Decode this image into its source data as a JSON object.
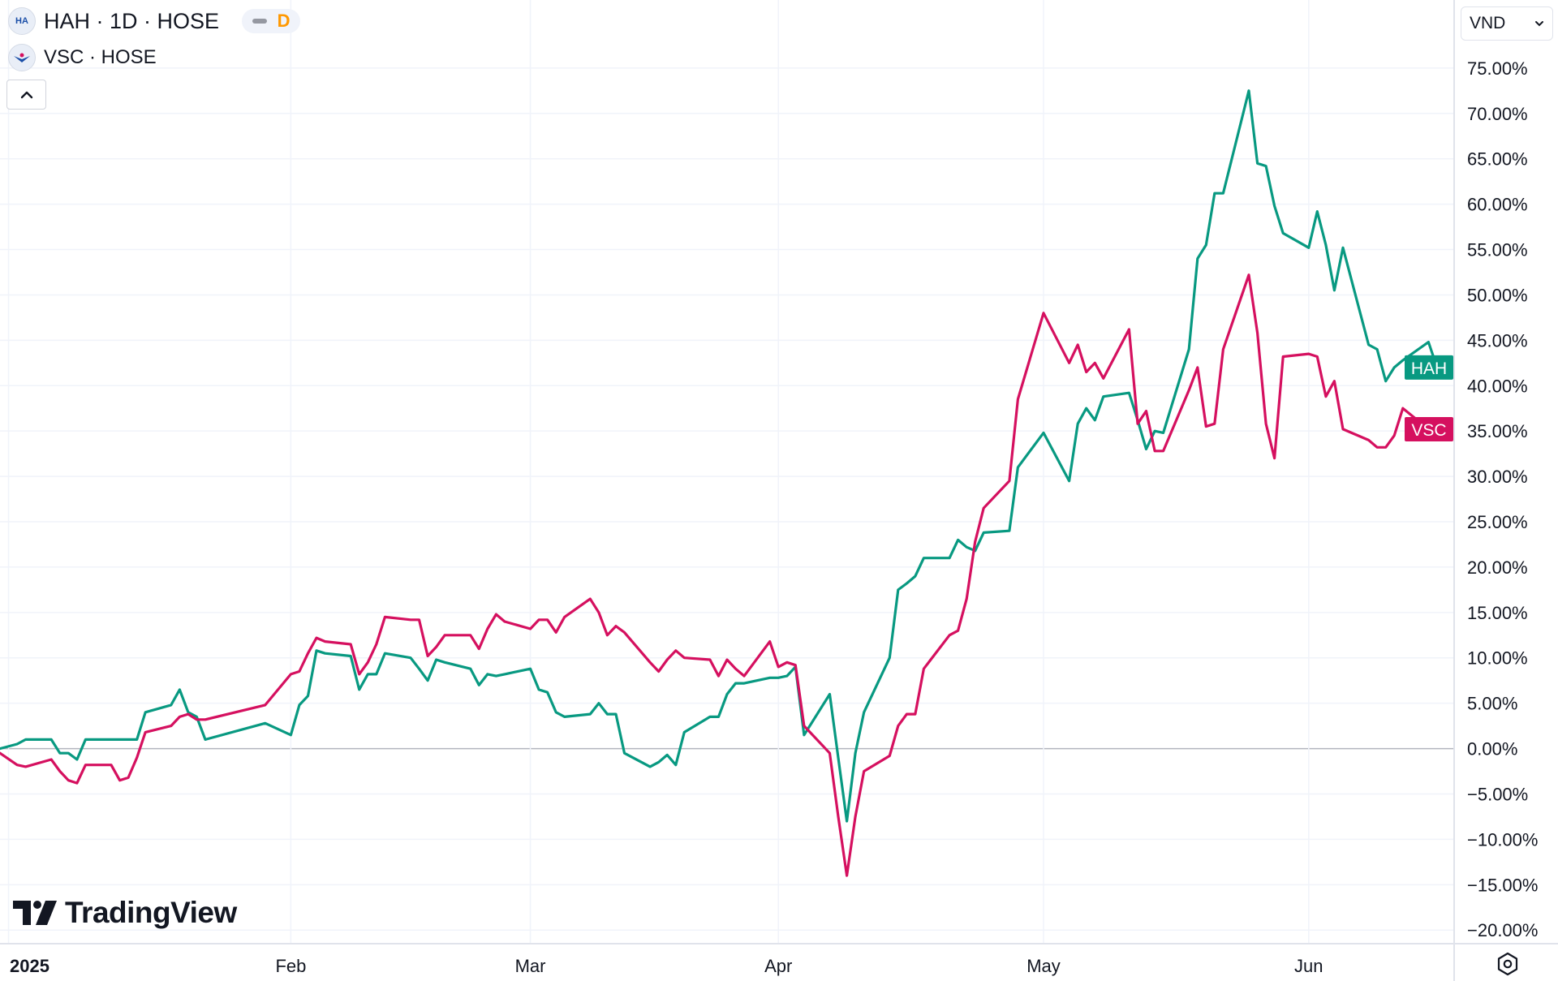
{
  "legend": {
    "primary": {
      "icon": "hah-logo-icon",
      "logo_text": "HA",
      "title": "HAH · 1D · HOSE",
      "interval_badge": "D"
    },
    "secondary": {
      "icon": "vsc-logo-icon",
      "title": "VSC · HOSE"
    }
  },
  "currency": {
    "label": "VND",
    "icon": "chevron-down-icon"
  },
  "branding": {
    "name": "TradingView",
    "icon": "tradingview-logo-icon"
  },
  "settings": {
    "icon": "gear-hexagon-icon"
  },
  "colors": {
    "HAH": "#089981",
    "VSC": "#d5105f",
    "grid": "#f0f3fa",
    "zero": "#b2b5be",
    "axis_text": "#131722"
  },
  "chart_data": {
    "type": "line",
    "x_unit": "trading days, 2025",
    "xlim": [
      "2024-12-31",
      "2025-06-19"
    ],
    "ylim": [
      -21.5,
      82.5
    ],
    "y_format": "percent",
    "y_ticks": [
      75,
      70,
      65,
      60,
      55,
      50,
      45,
      40,
      35,
      30,
      25,
      20,
      15,
      10,
      5,
      0,
      -5,
      -10,
      -15,
      -20
    ],
    "y_tick_labels": [
      "75.00%",
      "70.00%",
      "65.00%",
      "60.00%",
      "55.00%",
      "50.00%",
      "45.00%",
      "40.00%",
      "35.00%",
      "30.00%",
      "25.00%",
      "20.00%",
      "15.00%",
      "10.00%",
      "5.00%",
      "0.00%",
      "−5.00%",
      "−10.00%",
      "−15.00%",
      "−20.00%"
    ],
    "x_ticks": [
      {
        "label": "2025",
        "date": "2025-01-01",
        "bold": true
      },
      {
        "label": "Feb",
        "date": "2025-02-03"
      },
      {
        "label": "Mar",
        "date": "2025-03-03"
      },
      {
        "label": "Apr",
        "date": "2025-04-01"
      },
      {
        "label": "May",
        "date": "2025-05-02"
      },
      {
        "label": "Jun",
        "date": "2025-06-02"
      }
    ],
    "series": [
      {
        "name": "HAH",
        "color": "#089981",
        "last_label": "HAH",
        "points": [
          [
            "2024-12-31",
            0.0
          ],
          [
            "2025-01-02",
            0.5
          ],
          [
            "2025-01-03",
            1.0
          ],
          [
            "2025-01-06",
            1.0
          ],
          [
            "2025-01-07",
            -0.5
          ],
          [
            "2025-01-08",
            -0.5
          ],
          [
            "2025-01-09",
            -1.2
          ],
          [
            "2025-01-10",
            1.0
          ],
          [
            "2025-01-13",
            1.0
          ],
          [
            "2025-01-14",
            1.0
          ],
          [
            "2025-01-15",
            1.0
          ],
          [
            "2025-01-16",
            1.0
          ],
          [
            "2025-01-17",
            4.0
          ],
          [
            "2025-01-20",
            4.8
          ],
          [
            "2025-01-21",
            6.5
          ],
          [
            "2025-01-22",
            4.0
          ],
          [
            "2025-01-23",
            3.5
          ],
          [
            "2025-01-24",
            1.0
          ],
          [
            "2025-01-31",
            2.8
          ],
          [
            "2025-02-03",
            1.5
          ],
          [
            "2025-02-04",
            4.8
          ],
          [
            "2025-02-05",
            5.8
          ],
          [
            "2025-02-06",
            10.8
          ],
          [
            "2025-02-07",
            10.5
          ],
          [
            "2025-02-10",
            10.2
          ],
          [
            "2025-02-11",
            6.5
          ],
          [
            "2025-02-12",
            8.2
          ],
          [
            "2025-02-13",
            8.2
          ],
          [
            "2025-02-14",
            10.5
          ],
          [
            "2025-02-17",
            10.0
          ],
          [
            "2025-02-18",
            8.8
          ],
          [
            "2025-02-19",
            7.5
          ],
          [
            "2025-02-20",
            9.8
          ],
          [
            "2025-02-21",
            9.5
          ],
          [
            "2025-02-24",
            8.8
          ],
          [
            "2025-02-25",
            7.0
          ],
          [
            "2025-02-26",
            8.2
          ],
          [
            "2025-02-27",
            8.0
          ],
          [
            "2025-02-28",
            8.2
          ],
          [
            "2025-03-03",
            8.8
          ],
          [
            "2025-03-04",
            6.5
          ],
          [
            "2025-03-05",
            6.2
          ],
          [
            "2025-03-06",
            4.0
          ],
          [
            "2025-03-07",
            3.5
          ],
          [
            "2025-03-10",
            3.8
          ],
          [
            "2025-03-11",
            5.0
          ],
          [
            "2025-03-12",
            3.8
          ],
          [
            "2025-03-13",
            3.8
          ],
          [
            "2025-03-14",
            -0.5
          ],
          [
            "2025-03-17",
            -2.0
          ],
          [
            "2025-03-18",
            -1.5
          ],
          [
            "2025-03-19",
            -0.7
          ],
          [
            "2025-03-20",
            -1.8
          ],
          [
            "2025-03-21",
            1.8
          ],
          [
            "2025-03-24",
            3.5
          ],
          [
            "2025-03-25",
            3.5
          ],
          [
            "2025-03-26",
            6.0
          ],
          [
            "2025-03-27",
            7.2
          ],
          [
            "2025-03-28",
            7.2
          ],
          [
            "2025-03-31",
            7.8
          ],
          [
            "2025-04-01",
            7.8
          ],
          [
            "2025-04-02",
            8.0
          ],
          [
            "2025-04-03",
            9.0
          ],
          [
            "2025-04-04",
            1.5
          ],
          [
            "2025-04-07",
            6.0
          ],
          [
            "2025-04-08",
            -1.0
          ],
          [
            "2025-04-09",
            -8.0
          ],
          [
            "2025-04-10",
            -0.5
          ],
          [
            "2025-04-11",
            4.0
          ],
          [
            "2025-04-14",
            10.0
          ],
          [
            "2025-04-15",
            17.5
          ],
          [
            "2025-04-16",
            18.2
          ],
          [
            "2025-04-17",
            19.0
          ],
          [
            "2025-04-18",
            21.0
          ],
          [
            "2025-04-21",
            21.0
          ],
          [
            "2025-04-22",
            23.0
          ],
          [
            "2025-04-23",
            22.2
          ],
          [
            "2025-04-24",
            21.8
          ],
          [
            "2025-04-25",
            23.8
          ],
          [
            "2025-04-28",
            24.0
          ],
          [
            "2025-04-29",
            31.0
          ],
          [
            "2025-05-02",
            34.8
          ],
          [
            "2025-05-05",
            29.5
          ],
          [
            "2025-05-06",
            35.8
          ],
          [
            "2025-05-07",
            37.5
          ],
          [
            "2025-05-08",
            36.2
          ],
          [
            "2025-05-09",
            38.8
          ],
          [
            "2025-05-12",
            39.2
          ],
          [
            "2025-05-13",
            36.2
          ],
          [
            "2025-05-14",
            33.0
          ],
          [
            "2025-05-15",
            35.0
          ],
          [
            "2025-05-16",
            34.8
          ],
          [
            "2025-05-19",
            44.0
          ],
          [
            "2025-05-20",
            54.0
          ],
          [
            "2025-05-21",
            55.5
          ],
          [
            "2025-05-22",
            61.2
          ],
          [
            "2025-05-23",
            61.2
          ],
          [
            "2025-05-26",
            72.5
          ],
          [
            "2025-05-27",
            64.5
          ],
          [
            "2025-05-28",
            64.2
          ],
          [
            "2025-05-29",
            59.8
          ],
          [
            "2025-05-30",
            56.8
          ],
          [
            "2025-06-02",
            55.2
          ],
          [
            "2025-06-03",
            59.2
          ],
          [
            "2025-06-04",
            55.5
          ],
          [
            "2025-06-05",
            50.5
          ],
          [
            "2025-06-06",
            55.2
          ],
          [
            "2025-06-09",
            44.5
          ],
          [
            "2025-06-10",
            44.0
          ],
          [
            "2025-06-11",
            40.5
          ],
          [
            "2025-06-12",
            42.0
          ],
          [
            "2025-06-13",
            42.8
          ],
          [
            "2025-06-16",
            44.8
          ],
          [
            "2025-06-17",
            42.0
          ]
        ]
      },
      {
        "name": "VSC",
        "color": "#d5105f",
        "last_label": "VSC",
        "points": [
          [
            "2024-12-31",
            -0.5
          ],
          [
            "2025-01-02",
            -1.8
          ],
          [
            "2025-01-03",
            -2.0
          ],
          [
            "2025-01-06",
            -1.2
          ],
          [
            "2025-01-07",
            -2.5
          ],
          [
            "2025-01-08",
            -3.5
          ],
          [
            "2025-01-09",
            -3.8
          ],
          [
            "2025-01-10",
            -1.8
          ],
          [
            "2025-01-13",
            -1.8
          ],
          [
            "2025-01-14",
            -3.5
          ],
          [
            "2025-01-15",
            -3.2
          ],
          [
            "2025-01-16",
            -1.0
          ],
          [
            "2025-01-17",
            1.8
          ],
          [
            "2025-01-20",
            2.5
          ],
          [
            "2025-01-21",
            3.5
          ],
          [
            "2025-01-22",
            3.8
          ],
          [
            "2025-01-23",
            3.2
          ],
          [
            "2025-01-24",
            3.2
          ],
          [
            "2025-01-31",
            4.8
          ],
          [
            "2025-02-03",
            8.2
          ],
          [
            "2025-02-04",
            8.5
          ],
          [
            "2025-02-05",
            10.5
          ],
          [
            "2025-02-06",
            12.2
          ],
          [
            "2025-02-07",
            11.8
          ],
          [
            "2025-02-10",
            11.5
          ],
          [
            "2025-02-11",
            8.2
          ],
          [
            "2025-02-12",
            9.5
          ],
          [
            "2025-02-13",
            11.5
          ],
          [
            "2025-02-14",
            14.5
          ],
          [
            "2025-02-17",
            14.2
          ],
          [
            "2025-02-18",
            14.2
          ],
          [
            "2025-02-19",
            10.2
          ],
          [
            "2025-02-20",
            11.2
          ],
          [
            "2025-02-21",
            12.5
          ],
          [
            "2025-02-24",
            12.5
          ],
          [
            "2025-02-25",
            11.0
          ],
          [
            "2025-02-26",
            13.2
          ],
          [
            "2025-02-27",
            14.8
          ],
          [
            "2025-02-28",
            14.0
          ],
          [
            "2025-03-03",
            13.2
          ],
          [
            "2025-03-04",
            14.2
          ],
          [
            "2025-03-05",
            14.2
          ],
          [
            "2025-03-06",
            12.8
          ],
          [
            "2025-03-07",
            14.5
          ],
          [
            "2025-03-10",
            16.5
          ],
          [
            "2025-03-11",
            15.0
          ],
          [
            "2025-03-12",
            12.5
          ],
          [
            "2025-03-13",
            13.5
          ],
          [
            "2025-03-14",
            12.8
          ],
          [
            "2025-03-17",
            9.5
          ],
          [
            "2025-03-18",
            8.5
          ],
          [
            "2025-03-19",
            9.8
          ],
          [
            "2025-03-20",
            10.8
          ],
          [
            "2025-03-21",
            10.0
          ],
          [
            "2025-03-24",
            9.8
          ],
          [
            "2025-03-25",
            8.0
          ],
          [
            "2025-03-26",
            9.8
          ],
          [
            "2025-03-27",
            8.8
          ],
          [
            "2025-03-28",
            8.0
          ],
          [
            "2025-03-31",
            11.8
          ],
          [
            "2025-04-01",
            9.0
          ],
          [
            "2025-04-02",
            9.5
          ],
          [
            "2025-04-03",
            9.2
          ],
          [
            "2025-04-04",
            2.5
          ],
          [
            "2025-04-07",
            -0.5
          ],
          [
            "2025-04-08",
            -7.5
          ],
          [
            "2025-04-09",
            -14.0
          ],
          [
            "2025-04-10",
            -7.5
          ],
          [
            "2025-04-11",
            -2.5
          ],
          [
            "2025-04-14",
            -0.8
          ],
          [
            "2025-04-15",
            2.5
          ],
          [
            "2025-04-16",
            3.8
          ],
          [
            "2025-04-17",
            3.8
          ],
          [
            "2025-04-18",
            8.8
          ],
          [
            "2025-04-21",
            12.5
          ],
          [
            "2025-04-22",
            13.0
          ],
          [
            "2025-04-23",
            16.5
          ],
          [
            "2025-04-24",
            22.8
          ],
          [
            "2025-04-25",
            26.5
          ],
          [
            "2025-04-28",
            29.5
          ],
          [
            "2025-04-29",
            38.5
          ],
          [
            "2025-05-02",
            48.0
          ],
          [
            "2025-05-05",
            42.5
          ],
          [
            "2025-05-06",
            44.5
          ],
          [
            "2025-05-07",
            41.5
          ],
          [
            "2025-05-08",
            42.5
          ],
          [
            "2025-05-09",
            40.8
          ],
          [
            "2025-05-12",
            46.2
          ],
          [
            "2025-05-13",
            35.8
          ],
          [
            "2025-05-14",
            37.2
          ],
          [
            "2025-05-15",
            32.8
          ],
          [
            "2025-05-16",
            32.8
          ],
          [
            "2025-05-19",
            39.5
          ],
          [
            "2025-05-20",
            42.0
          ],
          [
            "2025-05-21",
            35.5
          ],
          [
            "2025-05-22",
            35.8
          ],
          [
            "2025-05-23",
            44.0
          ],
          [
            "2025-05-26",
            52.2
          ],
          [
            "2025-05-27",
            45.8
          ],
          [
            "2025-05-28",
            35.8
          ],
          [
            "2025-05-29",
            32.0
          ],
          [
            "2025-05-30",
            43.2
          ],
          [
            "2025-06-02",
            43.5
          ],
          [
            "2025-06-03",
            43.2
          ],
          [
            "2025-06-04",
            38.8
          ],
          [
            "2025-06-05",
            40.5
          ],
          [
            "2025-06-06",
            35.2
          ],
          [
            "2025-06-09",
            34.0
          ],
          [
            "2025-06-10",
            33.2
          ],
          [
            "2025-06-11",
            33.2
          ],
          [
            "2025-06-12",
            34.5
          ],
          [
            "2025-06-13",
            37.5
          ],
          [
            "2025-06-16",
            35.2
          ]
        ]
      }
    ]
  }
}
